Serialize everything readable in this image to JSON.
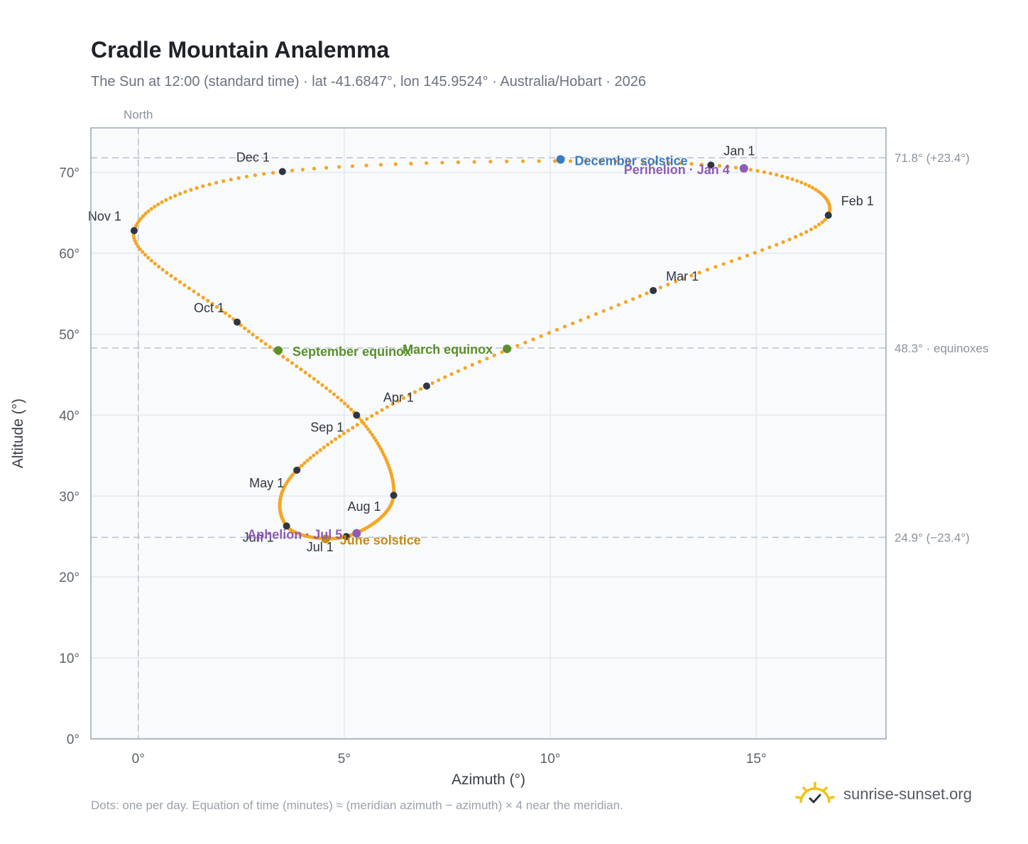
{
  "title": "Cradle Mountain Analemma",
  "subtitle": "The Sun at 12:00 (standard time) · lat -41.6847°, lon 145.9524° · Australia/Hobart · 2026",
  "footnote": "Dots: one per day. Equation of time (minutes) ≈ (meridian azimuth − azimuth) × 4 near the meridian.",
  "brand": {
    "name": "sunrise-sunset.org",
    "icon": "sun-check-icon"
  },
  "colors": {
    "path": "#f5a623",
    "month_marker": "#2f3640",
    "equinox": "#5a8f29",
    "june_solstice": "#c88a12",
    "december_solstice": "#3a7abf",
    "perihelion_aphelion": "#8e5cb5",
    "reference_line": "#b6c2cf",
    "plot_bg": "#f8fafc",
    "grid": "#e4e9ef"
  },
  "chart_data": {
    "type": "scatter",
    "xlabel": "Azimuth (°)",
    "ylabel": "Altitude (°)",
    "xlim": [
      -1.15,
      18.15
    ],
    "ylim": [
      0,
      75.5
    ],
    "x_ticks": [
      0,
      5,
      10,
      15
    ],
    "y_ticks": [
      0,
      10,
      20,
      30,
      40,
      50,
      60,
      70
    ],
    "tick_suffix": "°",
    "grid": true,
    "north": {
      "x": 0,
      "label": "North"
    },
    "reference_lines": [
      {
        "y": 71.8,
        "label": "71.8° (+23.4°)"
      },
      {
        "y": 48.3,
        "label": "48.3° · equinoxes"
      },
      {
        "y": 24.9,
        "label": "24.9° (−23.4°)"
      }
    ],
    "analemma_keypoints": [
      {
        "doy": 1,
        "az": 13.9,
        "alt": 70.9
      },
      {
        "doy": 32,
        "az": 16.75,
        "alt": 64.7
      },
      {
        "doy": 60,
        "az": 12.5,
        "alt": 55.4
      },
      {
        "doy": 91,
        "az": 7.0,
        "alt": 43.6
      },
      {
        "doy": 121,
        "az": 3.85,
        "alt": 33.2
      },
      {
        "doy": 152,
        "az": 3.6,
        "alt": 26.3
      },
      {
        "doy": 182,
        "az": 5.05,
        "alt": 25.0
      },
      {
        "doy": 213,
        "az": 6.2,
        "alt": 30.1
      },
      {
        "doy": 244,
        "az": 5.3,
        "alt": 40.0
      },
      {
        "doy": 274,
        "az": 2.4,
        "alt": 51.5
      },
      {
        "doy": 305,
        "az": -0.1,
        "alt": 62.8
      },
      {
        "doy": 335,
        "az": 3.5,
        "alt": 70.1
      },
      {
        "doy": 366,
        "az": 13.9,
        "alt": 70.9
      }
    ],
    "month_markers": [
      {
        "label": "Jan 1",
        "x": 13.9,
        "y": 70.9,
        "anchor": "start",
        "dx": 18,
        "dy": -14
      },
      {
        "label": "Feb 1",
        "x": 16.75,
        "y": 64.7,
        "anchor": "start",
        "dx": 18,
        "dy": -14
      },
      {
        "label": "Mar 1",
        "x": 12.5,
        "y": 55.4,
        "anchor": "start",
        "dx": 18,
        "dy": -14
      },
      {
        "label": "Apr 1",
        "x": 7.0,
        "y": 43.6,
        "anchor": "end",
        "dx": -18,
        "dy": 22
      },
      {
        "label": "May 1",
        "x": 3.85,
        "y": 33.2,
        "anchor": "end",
        "dx": -18,
        "dy": 24
      },
      {
        "label": "Jun 1",
        "x": 3.6,
        "y": 26.3,
        "anchor": "end",
        "dx": -18,
        "dy": 22
      },
      {
        "label": "Jul 1",
        "x": 5.05,
        "y": 25.0,
        "anchor": "end",
        "dx": -18,
        "dy": 21
      },
      {
        "label": "Aug 1",
        "x": 6.2,
        "y": 30.1,
        "anchor": "end",
        "dx": -18,
        "dy": 22
      },
      {
        "label": "Sep 1",
        "x": 5.3,
        "y": 40.0,
        "anchor": "end",
        "dx": -18,
        "dy": 23
      },
      {
        "label": "Oct 1",
        "x": 2.4,
        "y": 51.5,
        "anchor": "end",
        "dx": -18,
        "dy": -14
      },
      {
        "label": "Nov 1",
        "x": -0.1,
        "y": 62.8,
        "anchor": "end",
        "dx": -18,
        "dy": -14
      },
      {
        "label": "Dec 1",
        "x": 3.5,
        "y": 70.1,
        "anchor": "end",
        "dx": -18,
        "dy": -14
      }
    ],
    "events": [
      {
        "label": "March equinox",
        "x": 8.95,
        "y": 48.2,
        "color_key": "equinox",
        "anchor": "end",
        "dx": -20,
        "dy": 7
      },
      {
        "label": "September equinox",
        "x": 3.4,
        "y": 48.0,
        "color_key": "equinox",
        "anchor": "start",
        "dx": 20,
        "dy": 8
      },
      {
        "label": "June solstice",
        "x": 4.55,
        "y": 24.7,
        "color_key": "june_solstice",
        "anchor": "start",
        "dx": 20,
        "dy": 8
      },
      {
        "label": "December solstice",
        "x": 10.25,
        "y": 71.6,
        "color_key": "december_solstice",
        "anchor": "start",
        "dx": 20,
        "dy": 8
      },
      {
        "label": "Perihelion · Jan 4",
        "x": 14.7,
        "y": 70.5,
        "color_key": "perihelion_aphelion",
        "anchor": "end",
        "dx": -20,
        "dy": 8
      },
      {
        "label": "Aphelion · Jul 5",
        "x": 5.3,
        "y": 25.4,
        "color_key": "perihelion_aphelion",
        "anchor": "end",
        "dx": -20,
        "dy": 8
      }
    ]
  }
}
